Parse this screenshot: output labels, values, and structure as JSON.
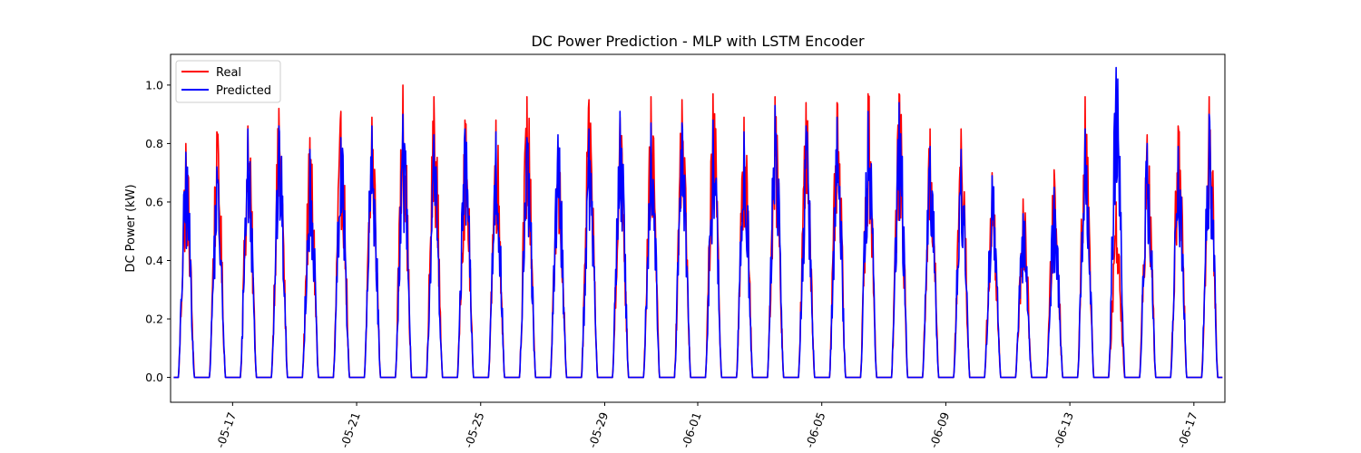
{
  "chart_data": {
    "type": "line",
    "title": "DC Power Prediction - MLP with LSTM Encoder",
    "xlabel": "",
    "ylabel": "DC Power (kW)",
    "x_domain": [
      "2020-05-15",
      "2020-06-18"
    ],
    "ylim": [
      -0.085,
      1.105
    ],
    "yticks": [
      0.0,
      0.2,
      0.4,
      0.6,
      0.8,
      1.0
    ],
    "ytick_labels": [
      "0.0",
      "0.2",
      "0.4",
      "0.6",
      "0.8",
      "1.0"
    ],
    "xticks": [
      "2020-05-17",
      "2020-05-21",
      "2020-05-25",
      "2020-05-29",
      "2020-06-01",
      "2020-06-05",
      "2020-06-09",
      "2020-06-13",
      "2020-06-17"
    ],
    "xtick_labels": [
      "-05-17",
      "-05-21",
      "-05-25",
      "-05-29",
      "-06-01",
      "-06-05",
      "-06-09",
      "-06-13",
      "-06-17"
    ],
    "grid": false,
    "legend": "top-left",
    "series": [
      {
        "name": "Real",
        "color": "#ff0000",
        "days": [
          "2020-05-15",
          "2020-05-16",
          "2020-05-17",
          "2020-05-18",
          "2020-05-19",
          "2020-05-20",
          "2020-05-21",
          "2020-05-22",
          "2020-05-23",
          "2020-05-24",
          "2020-05-25",
          "2020-05-26",
          "2020-05-27",
          "2020-05-28",
          "2020-05-29",
          "2020-05-30",
          "2020-05-31",
          "2020-06-01",
          "2020-06-02",
          "2020-06-03",
          "2020-06-04",
          "2020-06-05",
          "2020-06-06",
          "2020-06-07",
          "2020-06-08",
          "2020-06-09",
          "2020-06-10",
          "2020-06-11",
          "2020-06-12",
          "2020-06-13",
          "2020-06-14",
          "2020-06-15",
          "2020-06-16",
          "2020-06-17"
        ],
        "daily_peak": [
          0.8,
          0.84,
          0.86,
          0.92,
          0.82,
          0.91,
          0.89,
          1.0,
          0.96,
          0.88,
          0.88,
          0.96,
          0.79,
          0.95,
          0.89,
          0.96,
          0.95,
          0.97,
          0.89,
          0.96,
          0.94,
          0.94,
          0.97,
          0.97,
          0.85,
          0.85,
          0.7,
          0.61,
          0.71,
          0.96,
          0.6,
          0.83,
          0.86,
          0.96
        ],
        "night_value": 0.0
      },
      {
        "name": "Predicted",
        "color": "#0000ff",
        "days": [
          "2020-05-15",
          "2020-05-16",
          "2020-05-17",
          "2020-05-18",
          "2020-05-19",
          "2020-05-20",
          "2020-05-21",
          "2020-05-22",
          "2020-05-23",
          "2020-05-24",
          "2020-05-25",
          "2020-05-26",
          "2020-05-27",
          "2020-05-28",
          "2020-05-29",
          "2020-05-30",
          "2020-05-31",
          "2020-06-01",
          "2020-06-02",
          "2020-06-03",
          "2020-06-04",
          "2020-06-05",
          "2020-06-06",
          "2020-06-07",
          "2020-06-08",
          "2020-06-09",
          "2020-06-10",
          "2020-06-11",
          "2020-06-12",
          "2020-06-13",
          "2020-06-14",
          "2020-06-15",
          "2020-06-16",
          "2020-06-17"
        ],
        "daily_peak": [
          0.77,
          0.72,
          0.85,
          0.86,
          0.78,
          0.82,
          0.86,
          0.9,
          0.83,
          0.85,
          0.84,
          0.82,
          0.83,
          0.85,
          0.91,
          0.87,
          0.87,
          0.88,
          0.84,
          0.93,
          0.86,
          0.89,
          0.91,
          0.94,
          0.79,
          0.78,
          0.69,
          0.56,
          0.65,
          0.85,
          1.06,
          0.8,
          0.79,
          0.9
        ],
        "night_value": 0.0
      }
    ]
  }
}
